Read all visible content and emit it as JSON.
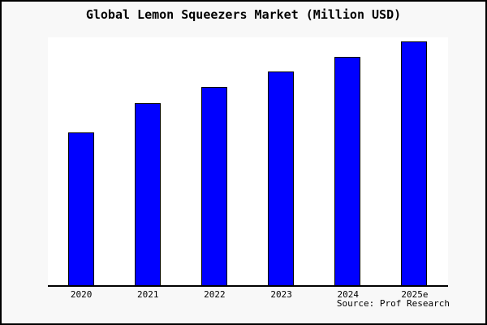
{
  "frame": {
    "background": "#f8f8f8",
    "border_color": "#000000"
  },
  "chart_data": {
    "type": "bar",
    "title": "Global Lemon Squeezers Market (Million USD)",
    "categories": [
      "2020",
      "2021",
      "2022",
      "2023",
      "2024",
      "2025e"
    ],
    "values": [
      187,
      223,
      243,
      262,
      280,
      299
    ],
    "values_note": "y-axis has no tick labels or gridlines; values are relative bar heights in pixels",
    "xlabel": "",
    "ylabel": "",
    "grid": false,
    "legend": false,
    "plot_background": "#ffffff",
    "bar_color": "#0000ff",
    "bar_border_color": "#000000",
    "axis_color": "#000000",
    "source_note": "Source: Prof Research"
  }
}
